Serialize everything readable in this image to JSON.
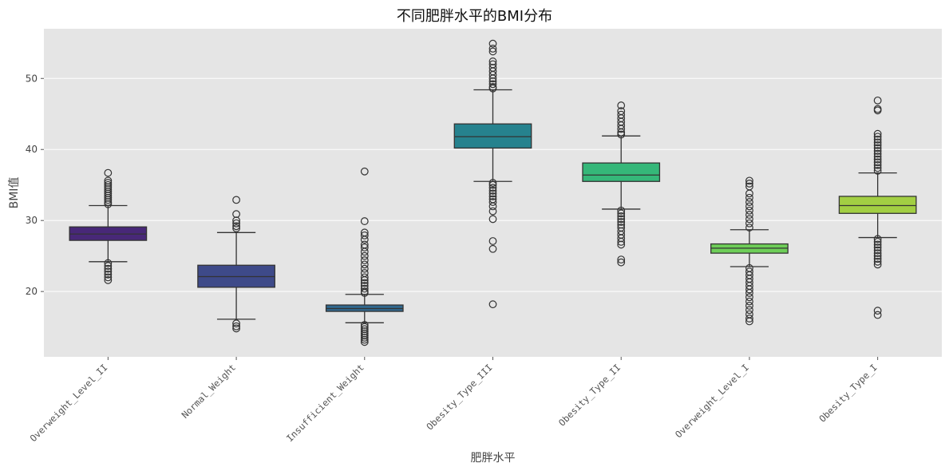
{
  "chart_data": {
    "type": "box",
    "title": "不同肥胖水平的BMI分布",
    "xlabel": "肥胖水平",
    "ylabel": "BMI值",
    "ylim": [
      10.8,
      57.0
    ],
    "yticks": [
      20,
      30,
      40,
      50
    ],
    "grid": true,
    "background": "#e5e5e5",
    "legend": null,
    "categories": [
      "Overweight_Level_II",
      "Normal_Weight",
      "Insufficient_Weight",
      "Obesity_Type_III",
      "Obesity_Type_II",
      "Overweight_Level_I",
      "Obesity_Type_I"
    ],
    "series": [
      {
        "name": "Overweight_Level_II",
        "color": "#482878",
        "whisker_low": 24.2,
        "q1": 27.2,
        "median": 28.1,
        "q3": 29.1,
        "whisker_high": 32.1,
        "outliers": [
          36.7,
          35.6,
          35.3,
          35.0,
          34.7,
          34.4,
          34.1,
          33.8,
          33.5,
          33.2,
          32.9,
          32.6,
          32.3,
          24.0,
          23.6,
          23.2,
          22.8,
          22.4,
          22.0,
          21.6
        ]
      },
      {
        "name": "Normal_Weight",
        "color": "#3e4a89",
        "whisker_low": 16.1,
        "q1": 20.6,
        "median": 22.1,
        "q3": 23.7,
        "whisker_high": 28.3,
        "outliers": [
          32.9,
          30.9,
          30.0,
          29.6,
          29.2,
          28.9,
          15.5,
          15.1,
          14.8
        ]
      },
      {
        "name": "Insufficient_Weight",
        "color": "#31688e",
        "whisker_low": 15.6,
        "q1": 17.2,
        "median": 17.6,
        "q3": 18.1,
        "whisker_high": 19.6,
        "outliers": [
          36.9,
          29.9,
          28.3,
          27.9,
          27.3,
          26.6,
          26.2,
          25.6,
          25.0,
          24.4,
          23.8,
          23.2,
          22.6,
          22.0,
          21.6,
          21.2,
          20.8,
          20.4,
          20.0,
          19.8,
          15.3,
          15.0,
          14.7,
          14.4,
          14.1,
          13.8,
          13.5,
          13.2,
          12.9
        ]
      },
      {
        "name": "Obesity_Type_III",
        "color": "#26828e",
        "whisker_low": 35.5,
        "q1": 40.2,
        "median": 41.8,
        "q3": 43.6,
        "whisker_high": 48.4,
        "outliers": [
          54.9,
          54.2,
          53.8,
          52.4,
          52.0,
          51.5,
          51.0,
          50.5,
          50.0,
          49.6,
          49.2,
          48.8,
          48.6,
          35.3,
          35.0,
          34.6,
          34.2,
          33.8,
          33.4,
          33.0,
          32.6,
          32.0,
          31.3,
          30.2,
          27.1,
          26.0,
          18.2
        ]
      },
      {
        "name": "Obesity_Type_II",
        "color": "#35b779",
        "whisker_low": 31.6,
        "q1": 35.5,
        "median": 36.4,
        "q3": 38.1,
        "whisker_high": 41.9,
        "outliers": [
          46.2,
          45.4,
          44.9,
          44.4,
          43.9,
          43.4,
          42.9,
          42.4,
          42.1,
          31.4,
          31.0,
          30.6,
          30.2,
          29.8,
          29.4,
          29.0,
          28.5,
          28.0,
          27.5,
          27.0,
          26.6,
          24.5,
          24.1
        ]
      },
      {
        "name": "Overweight_Level_I",
        "color": "#6ece58",
        "whisker_low": 23.5,
        "q1": 25.4,
        "median": 26.1,
        "q3": 26.7,
        "whisker_high": 28.7,
        "outliers": [
          35.6,
          35.2,
          34.8,
          33.8,
          33.2,
          32.6,
          32.0,
          31.4,
          30.8,
          30.2,
          29.6,
          29.0,
          23.3,
          22.8,
          22.3,
          21.8,
          21.3,
          20.8,
          20.3,
          19.8,
          19.2,
          18.6,
          18.0,
          17.4,
          16.8,
          16.2,
          15.8
        ]
      },
      {
        "name": "Obesity_Type_I",
        "color": "#a2cf43",
        "whisker_low": 27.6,
        "q1": 31.0,
        "median": 32.1,
        "q3": 33.4,
        "whisker_high": 36.7,
        "outliers": [
          46.9,
          45.7,
          45.5,
          42.2,
          41.8,
          41.4,
          41.0,
          40.6,
          40.2,
          39.8,
          39.4,
          39.0,
          38.6,
          38.2,
          37.8,
          37.4,
          37.0,
          27.4,
          27.0,
          26.6,
          26.2,
          25.8,
          25.4,
          25.0,
          24.6,
          24.2,
          23.8,
          17.3,
          16.7
        ]
      }
    ]
  }
}
